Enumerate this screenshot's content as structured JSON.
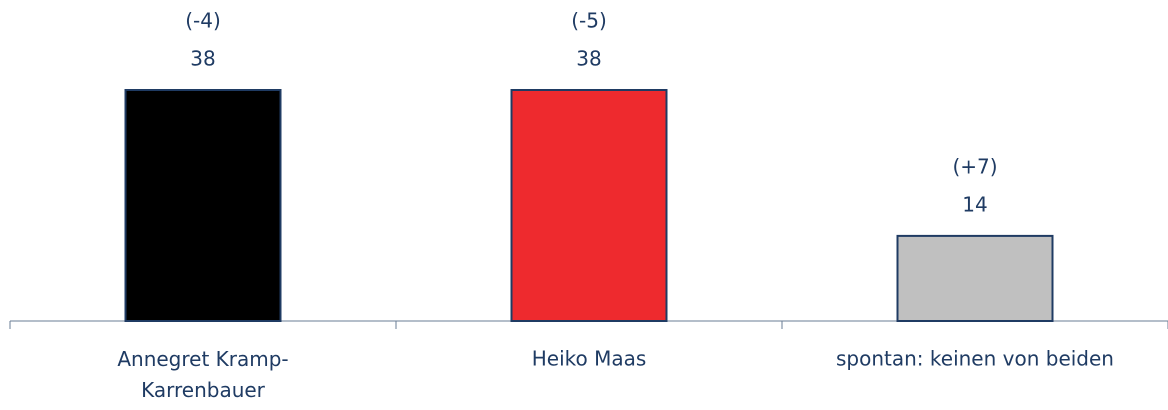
{
  "chart_data": {
    "type": "bar",
    "categories": [
      "Annegret Kramp-Karrenbauer",
      "Heiko Maas",
      "spontan: keinen von beiden"
    ],
    "values": [
      38,
      38,
      14
    ],
    "changes": [
      "(-4)",
      "(-5)",
      "(+7)"
    ],
    "colors": [
      "#000000",
      "#ee2a2e",
      "#c0c0c0"
    ]
  }
}
